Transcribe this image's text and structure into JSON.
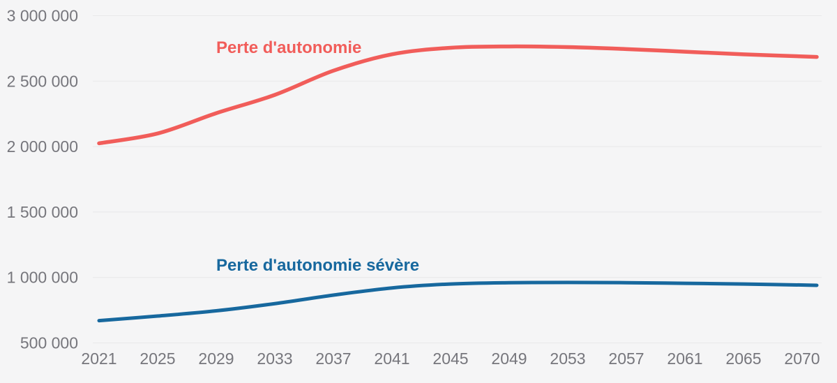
{
  "figure": {
    "background_color": "#f5f5f6",
    "grid_color": "#e8e8e9",
    "tick_text_color": "#76767c"
  },
  "chart_data": {
    "type": "line",
    "title": "",
    "xlabel": "",
    "ylabel": "",
    "grid": "horizontal-only",
    "legend": "direct-labels-on-chart",
    "xlim": [
      2021,
      2070
    ],
    "ylim": [
      500000,
      3000000
    ],
    "x": [
      2021,
      2025,
      2029,
      2033,
      2037,
      2041,
      2045,
      2049,
      2053,
      2057,
      2061,
      2065,
      2070
    ],
    "x_tick_labels": [
      "2021",
      "2025",
      "2029",
      "2033",
      "2037",
      "2041",
      "2045",
      "2049",
      "2053",
      "2057",
      "2061",
      "2065",
      "2070"
    ],
    "y_ticks": {
      "values": [
        3000000,
        2500000,
        2000000,
        1500000,
        1000000,
        500000
      ],
      "labels": [
        "3 000 000",
        "2 500 000",
        "2 000 000",
        "1 500 000",
        "1 000 000",
        "500 000"
      ]
    },
    "series": [
      {
        "name": "Perte d'autonomie",
        "color": "#f15d5a",
        "values": [
          2025000,
          2100000,
          2255000,
          2395000,
          2580000,
          2705000,
          2755000,
          2765000,
          2760000,
          2745000,
          2725000,
          2705000,
          2685000
        ]
      },
      {
        "name": "Perte d'autonomie sévère",
        "color": "#17689e",
        "values": [
          670000,
          705000,
          745000,
          800000,
          865000,
          920000,
          950000,
          960000,
          962000,
          960000,
          955000,
          950000,
          940000
        ]
      }
    ]
  }
}
